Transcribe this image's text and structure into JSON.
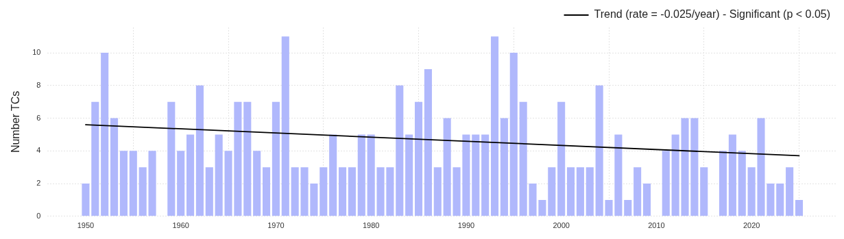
{
  "chart_data": {
    "type": "bar",
    "ylabel": "Number TCs",
    "x": [
      1950,
      1951,
      1952,
      1953,
      1954,
      1955,
      1956,
      1957,
      1958,
      1959,
      1960,
      1961,
      1962,
      1963,
      1964,
      1965,
      1966,
      1967,
      1968,
      1969,
      1970,
      1971,
      1972,
      1973,
      1974,
      1975,
      1976,
      1977,
      1978,
      1979,
      1980,
      1981,
      1982,
      1983,
      1984,
      1985,
      1986,
      1987,
      1988,
      1989,
      1990,
      1991,
      1992,
      1993,
      1994,
      1995,
      1996,
      1997,
      1998,
      1999,
      2000,
      2001,
      2002,
      2003,
      2004,
      2005,
      2006,
      2007,
      2008,
      2009,
      2010,
      2011,
      2012,
      2013,
      2014,
      2015,
      2016,
      2017,
      2018,
      2019,
      2020,
      2021,
      2022,
      2023,
      2024,
      2025
    ],
    "series": [
      {
        "color": "#b0b8fc",
        "values": [
          2,
          7,
          10,
          6,
          4,
          4,
          3,
          4,
          0,
          7,
          4,
          5,
          8,
          3,
          5,
          4,
          7,
          7,
          4,
          3,
          7,
          11,
          3,
          3,
          2,
          3,
          5,
          3,
          3,
          5,
          5,
          3,
          3,
          8,
          5,
          7,
          9,
          3,
          6,
          3,
          5,
          5,
          5,
          11,
          6,
          10,
          7,
          2,
          1,
          3,
          7,
          3,
          3,
          3,
          8,
          1,
          5,
          1,
          3,
          2,
          0,
          4,
          5,
          6,
          6,
          3,
          0,
          4,
          5,
          4,
          3,
          6,
          2,
          2,
          3,
          1
        ]
      },
      {
        "type": "line",
        "name": "Trend (rate = -0.025/year) - Significant (p < 0.05)",
        "color": "#000000",
        "x": [
          1950,
          2025
        ],
        "values": [
          5.6,
          3.7
        ]
      }
    ],
    "xlim": [
      1946,
      2029
    ],
    "xticks": [
      1950,
      1960,
      1970,
      1980,
      1990,
      2000,
      2010,
      2020
    ],
    "ylim": [
      0,
      11.55
    ],
    "yticks": [
      0,
      2,
      4,
      6,
      8,
      10
    ],
    "grid": true,
    "legend": "top right"
  }
}
